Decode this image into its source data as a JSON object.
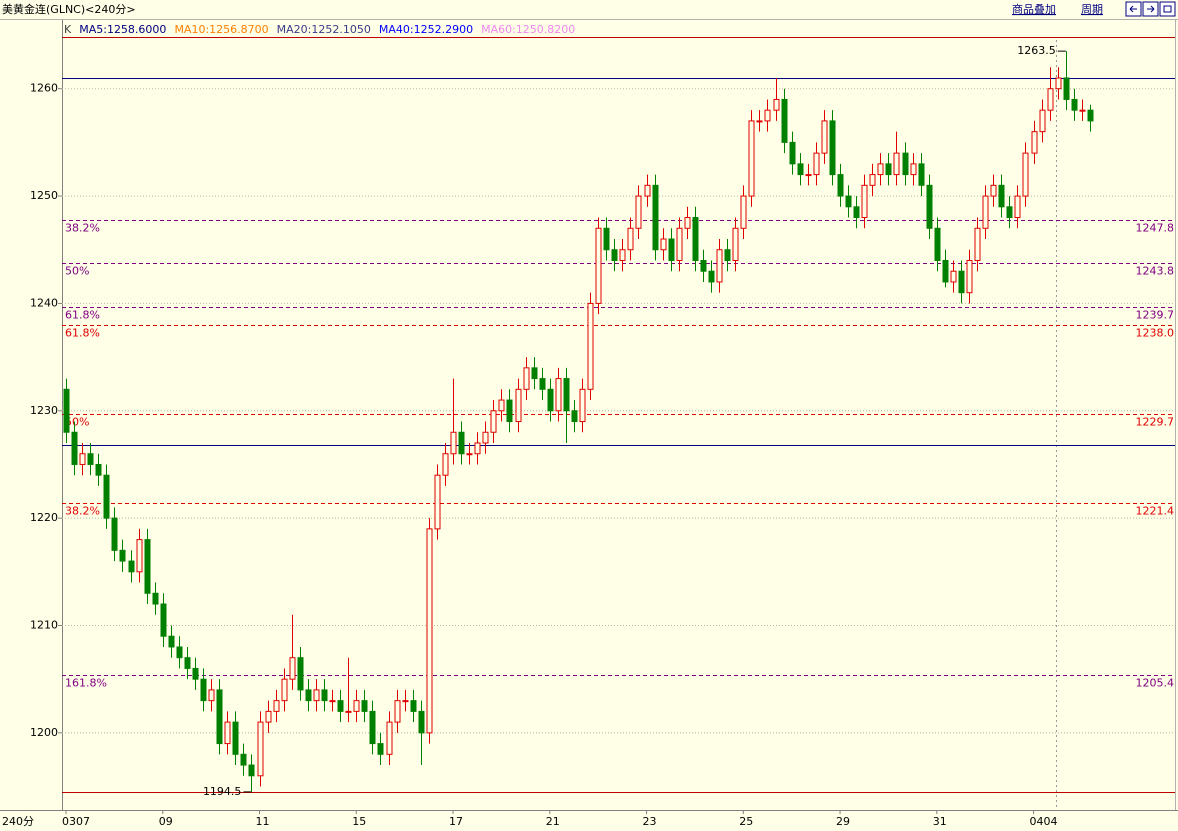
{
  "header": {
    "title": "美黄金连(GLNC)<240分>",
    "buttons": [
      "商品叠加",
      "周期"
    ]
  },
  "chart_data": {
    "type": "candlestick",
    "indicators": [
      {
        "name": "K",
        "color": "#404040"
      },
      {
        "name": "MA5:1258.6000",
        "color": "#000080"
      },
      {
        "name": "MA10:1256.8700",
        "color": "#ff8000"
      },
      {
        "name": "MA20:1252.1050",
        "color": "#3c3c8c"
      },
      {
        "name": "MA40:1252.2900",
        "color": "#0000ff"
      },
      {
        "name": "MA60:1250.8200",
        "color": "#ee88ee"
      }
    ],
    "period_label": "240分",
    "up_color": "#e00000",
    "down_color": "#008000",
    "categories": [
      "0307",
      null,
      null,
      null,
      null,
      null,
      null,
      null,
      null,
      null,
      null,
      null,
      "09",
      null,
      null,
      null,
      null,
      null,
      null,
      null,
      null,
      null,
      null,
      null,
      "11",
      null,
      null,
      null,
      null,
      null,
      null,
      null,
      null,
      null,
      null,
      null,
      "15",
      null,
      null,
      null,
      null,
      null,
      null,
      null,
      null,
      null,
      null,
      null,
      "17",
      null,
      null,
      null,
      null,
      null,
      null,
      null,
      null,
      null,
      null,
      null,
      "21",
      null,
      null,
      null,
      null,
      null,
      null,
      null,
      null,
      null,
      null,
      null,
      "23",
      null,
      null,
      null,
      null,
      null,
      null,
      null,
      null,
      null,
      null,
      null,
      "25",
      null,
      null,
      null,
      null,
      null,
      null,
      null,
      null,
      null,
      null,
      null,
      "29",
      null,
      null,
      null,
      null,
      null,
      null,
      null,
      null,
      null,
      null,
      null,
      "31",
      null,
      null,
      null,
      null,
      null,
      null,
      null,
      null,
      null,
      null,
      null,
      "0404",
      null,
      null,
      null,
      null,
      null,
      null,
      null
    ],
    "ohlc": [
      [
        1232,
        1233,
        1227,
        1228
      ],
      [
        1228,
        1229,
        1224,
        1225
      ],
      [
        1225,
        1227,
        1224,
        1226
      ],
      [
        1226,
        1227,
        1224,
        1225
      ],
      [
        1225,
        1226,
        1223,
        1224
      ],
      [
        1224,
        1225,
        1219,
        1220
      ],
      [
        1220,
        1221,
        1216,
        1217
      ],
      [
        1217,
        1218,
        1215,
        1216
      ],
      [
        1216,
        1217,
        1214,
        1215
      ],
      [
        1215,
        1219,
        1214,
        1218
      ],
      [
        1218,
        1219,
        1212,
        1213
      ],
      [
        1213,
        1214,
        1211,
        1212
      ],
      [
        1212,
        1213,
        1208,
        1209
      ],
      [
        1209,
        1210,
        1207,
        1208
      ],
      [
        1208,
        1209,
        1206,
        1207
      ],
      [
        1207,
        1208,
        1205,
        1206
      ],
      [
        1206,
        1207,
        1204,
        1205
      ],
      [
        1205,
        1206,
        1202,
        1203
      ],
      [
        1203,
        1205,
        1202,
        1204
      ],
      [
        1204,
        1205,
        1198,
        1199
      ],
      [
        1199,
        1202,
        1198,
        1201
      ],
      [
        1201,
        1202,
        1197,
        1198
      ],
      [
        1198,
        1199,
        1196,
        1197
      ],
      [
        1197,
        1198,
        1194.5,
        1196
      ],
      [
        1196,
        1202,
        1195,
        1201
      ],
      [
        1201,
        1203,
        1200,
        1202
      ],
      [
        1202,
        1204,
        1201,
        1203
      ],
      [
        1203,
        1206,
        1202,
        1205
      ],
      [
        1205,
        1211,
        1204,
        1207
      ],
      [
        1207,
        1208,
        1203,
        1204
      ],
      [
        1204,
        1205,
        1202,
        1203
      ],
      [
        1203,
        1205,
        1202,
        1204
      ],
      [
        1204,
        1205,
        1202,
        1203
      ],
      [
        1203,
        1204,
        1202,
        1203
      ],
      [
        1203,
        1204,
        1201,
        1202
      ],
      [
        1202,
        1207,
        1201,
        1202
      ],
      [
        1202,
        1204,
        1201,
        1203
      ],
      [
        1203,
        1204,
        1201,
        1202
      ],
      [
        1202,
        1203,
        1198,
        1199
      ],
      [
        1199,
        1200,
        1197,
        1198
      ],
      [
        1198,
        1202,
        1197,
        1201
      ],
      [
        1201,
        1204,
        1200,
        1203
      ],
      [
        1203,
        1204,
        1202,
        1203
      ],
      [
        1203,
        1204,
        1201,
        1202
      ],
      [
        1202,
        1203,
        1197,
        1200
      ],
      [
        1200,
        1220,
        1199,
        1219
      ],
      [
        1219,
        1225,
        1218,
        1224
      ],
      [
        1224,
        1227,
        1223,
        1226
      ],
      [
        1226,
        1233,
        1225,
        1228
      ],
      [
        1228,
        1229,
        1225,
        1226
      ],
      [
        1226,
        1227,
        1225,
        1226
      ],
      [
        1226,
        1228,
        1225,
        1227
      ],
      [
        1227,
        1229,
        1226,
        1228
      ],
      [
        1228,
        1231,
        1227,
        1230
      ],
      [
        1230,
        1232,
        1229,
        1231
      ],
      [
        1231,
        1232,
        1228,
        1229
      ],
      [
        1229,
        1233,
        1228,
        1232
      ],
      [
        1232,
        1235,
        1231,
        1234
      ],
      [
        1234,
        1235,
        1232,
        1233
      ],
      [
        1233,
        1234,
        1231,
        1232
      ],
      [
        1232,
        1233,
        1229,
        1230
      ],
      [
        1230,
        1234,
        1229,
        1233
      ],
      [
        1233,
        1234,
        1227,
        1230
      ],
      [
        1230,
        1231,
        1228,
        1229
      ],
      [
        1229,
        1233,
        1228,
        1232
      ],
      [
        1232,
        1241,
        1231,
        1240
      ],
      [
        1240,
        1248,
        1239,
        1247
      ],
      [
        1247,
        1248,
        1244,
        1245
      ],
      [
        1245,
        1246,
        1243,
        1244
      ],
      [
        1244,
        1246,
        1243,
        1245
      ],
      [
        1245,
        1248,
        1244,
        1247
      ],
      [
        1247,
        1251,
        1246,
        1250
      ],
      [
        1250,
        1252,
        1249,
        1251
      ],
      [
        1251,
        1252,
        1244,
        1245
      ],
      [
        1245,
        1247,
        1244,
        1246
      ],
      [
        1246,
        1247,
        1243,
        1244
      ],
      [
        1244,
        1248,
        1243,
        1247
      ],
      [
        1247,
        1249,
        1246,
        1248
      ],
      [
        1248,
        1249,
        1243,
        1244
      ],
      [
        1244,
        1245,
        1242,
        1243
      ],
      [
        1243,
        1244,
        1241,
        1242
      ],
      [
        1242,
        1246,
        1241,
        1245
      ],
      [
        1245,
        1246,
        1243,
        1244
      ],
      [
        1244,
        1248,
        1243,
        1247
      ],
      [
        1247,
        1251,
        1246,
        1250
      ],
      [
        1250,
        1258,
        1249,
        1257
      ],
      [
        1257,
        1258,
        1256,
        1257
      ],
      [
        1257,
        1259,
        1256,
        1258
      ],
      [
        1258,
        1261,
        1257,
        1259
      ],
      [
        1259,
        1260,
        1254,
        1255
      ],
      [
        1255,
        1256,
        1252,
        1253
      ],
      [
        1253,
        1254,
        1251,
        1252
      ],
      [
        1252,
        1253,
        1251,
        1252
      ],
      [
        1252,
        1255,
        1251,
        1254
      ],
      [
        1254,
        1258,
        1253,
        1257
      ],
      [
        1257,
        1258,
        1251,
        1252
      ],
      [
        1252,
        1253,
        1249,
        1250
      ],
      [
        1250,
        1251,
        1248,
        1249
      ],
      [
        1249,
        1250,
        1247,
        1248
      ],
      [
        1248,
        1252,
        1247,
        1251
      ],
      [
        1251,
        1253,
        1250,
        1252
      ],
      [
        1252,
        1254,
        1251,
        1253
      ],
      [
        1253,
        1254,
        1251,
        1252
      ],
      [
        1252,
        1256,
        1251,
        1254
      ],
      [
        1254,
        1255,
        1251,
        1252
      ],
      [
        1252,
        1254,
        1251,
        1253
      ],
      [
        1253,
        1254,
        1250,
        1251
      ],
      [
        1251,
        1252,
        1246,
        1247
      ],
      [
        1247,
        1248,
        1243,
        1244
      ],
      [
        1244,
        1245,
        1241.5,
        1242
      ],
      [
        1242,
        1244,
        1241,
        1243
      ],
      [
        1243,
        1244,
        1240,
        1241
      ],
      [
        1241,
        1245,
        1240,
        1244
      ],
      [
        1244,
        1248,
        1243,
        1247
      ],
      [
        1247,
        1251,
        1246,
        1250
      ],
      [
        1250,
        1252,
        1249,
        1251
      ],
      [
        1251,
        1252,
        1248,
        1249
      ],
      [
        1249,
        1250,
        1247,
        1248
      ],
      [
        1248,
        1251,
        1247,
        1250
      ],
      [
        1250,
        1255,
        1249,
        1254
      ],
      [
        1254,
        1257,
        1253,
        1256
      ],
      [
        1256,
        1259,
        1255,
        1258
      ],
      [
        1258,
        1262,
        1257,
        1260
      ],
      [
        1260,
        1262,
        1259,
        1261
      ],
      [
        1261,
        1263.5,
        1258,
        1259
      ],
      [
        1259,
        1260,
        1257,
        1258
      ],
      [
        1258,
        1259,
        1257,
        1258
      ],
      [
        1258,
        1258.5,
        1256,
        1257
      ]
    ],
    "ylim": [
      1193,
      1266.4
    ],
    "yticks": [
      1200,
      1210,
      1220,
      1230,
      1240,
      1250,
      1260
    ],
    "grid": true,
    "levels": [
      {
        "name": "38.2%",
        "value": 1247.8,
        "color": "#800080"
      },
      {
        "name": "50%",
        "value": 1243.8,
        "color": "#800080"
      },
      {
        "name": "61.8%",
        "value": 1239.7,
        "color": "#800080"
      },
      {
        "name": "61.8%",
        "value": {
          "value": 1238,
          "label": "1238.0"
        },
        "color": "#e00000"
      },
      {
        "name": "50%",
        "value": 1229.7,
        "color": "#e00000"
      },
      {
        "name": "38.2%",
        "value": 1221.4,
        "color": "#e00000"
      },
      {
        "name": "161.8%",
        "value": 1205.4,
        "color": "#800080"
      }
    ],
    "bounds": [
      {
        "value": 1264.8,
        "color": "#c00000"
      },
      {
        "value": 1261,
        "color": "#000080"
      },
      {
        "value": 1226.8,
        "color": "#000080"
      },
      {
        "value": 1194.5,
        "color": "#c00000"
      }
    ],
    "high_annotation": 1263.5,
    "low_annotation": 1194.5
  }
}
